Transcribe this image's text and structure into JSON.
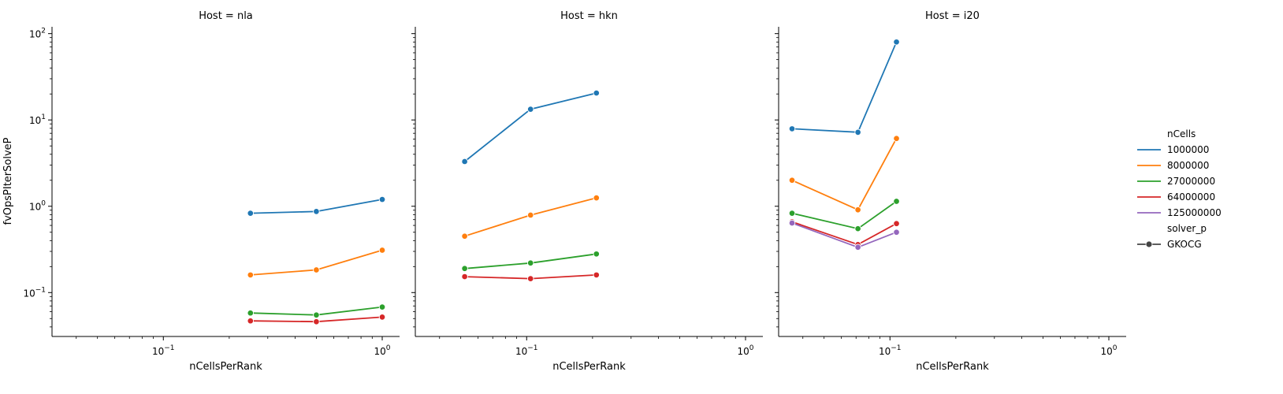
{
  "chart_data": {
    "type": "line",
    "x_scale": "log",
    "y_scale": "log",
    "shared_y": true,
    "ylabel": "fvOpsPIterSolveP",
    "xlabel": "nCellsPerRank",
    "ylim": [
      0.031,
      120
    ],
    "y_ticks": [
      {
        "value": 0.1,
        "base": "10",
        "exp": "−1"
      },
      {
        "value": 1,
        "base": "10",
        "exp": "0"
      },
      {
        "value": 10,
        "base": "10",
        "exp": "1"
      },
      {
        "value": 100,
        "base": "10",
        "exp": "2"
      }
    ],
    "x_ticks": [
      {
        "value": 0.1,
        "base": "10",
        "exp": "−1"
      },
      {
        "value": 1,
        "base": "10",
        "exp": "0"
      }
    ],
    "legend": {
      "placement": "right",
      "hue_title": "nCells",
      "hue_entries": [
        {
          "label": "1000000",
          "color": "#1f77b4"
        },
        {
          "label": "8000000",
          "color": "#ff7f0e"
        },
        {
          "label": "27000000",
          "color": "#2ca02c"
        },
        {
          "label": "64000000",
          "color": "#d62728"
        },
        {
          "label": "125000000",
          "color": "#9467bd"
        }
      ],
      "style_title": "solver_p",
      "style_entries": [
        {
          "label": "GKOCG",
          "color": "#444444"
        }
      ]
    },
    "panels": [
      {
        "title": "Host = nla",
        "xlim": [
          0.031,
          1.2
        ],
        "series": [
          {
            "name": "1000000",
            "color": "#1f77b4",
            "x": [
              0.25,
              0.5,
              1.0
            ],
            "y": [
              0.83,
              0.87,
              1.2
            ]
          },
          {
            "name": "8000000",
            "color": "#ff7f0e",
            "x": [
              0.25,
              0.5,
              1.0
            ],
            "y": [
              0.16,
              0.183,
              0.31
            ]
          },
          {
            "name": "27000000",
            "color": "#2ca02c",
            "x": [
              0.25,
              0.5,
              1.0
            ],
            "y": [
              0.058,
              0.055,
              0.068
            ]
          },
          {
            "name": "64000000",
            "color": "#d62728",
            "x": [
              0.25,
              0.5,
              1.0
            ],
            "y": [
              0.047,
              0.046,
              0.052
            ]
          }
        ]
      },
      {
        "title": "Host = hkn",
        "xlim": [
          0.031,
          1.2
        ],
        "series": [
          {
            "name": "1000000",
            "color": "#1f77b4",
            "x": [
              0.0521,
              0.1042,
              0.2083
            ],
            "y": [
              3.3,
              13.3,
              20.5
            ]
          },
          {
            "name": "8000000",
            "color": "#ff7f0e",
            "x": [
              0.0521,
              0.1042,
              0.2083
            ],
            "y": [
              0.45,
              0.79,
              1.25
            ]
          },
          {
            "name": "27000000",
            "color": "#2ca02c",
            "x": [
              0.0521,
              0.1042,
              0.2083
            ],
            "y": [
              0.19,
              0.22,
              0.28
            ]
          },
          {
            "name": "64000000",
            "color": "#d62728",
            "x": [
              0.0521,
              0.1042,
              0.2083
            ],
            "y": [
              0.153,
              0.145,
              0.16
            ]
          }
        ]
      },
      {
        "title": "Host = i20",
        "xlim": [
          0.031,
          1.2
        ],
        "series": [
          {
            "name": "1000000",
            "color": "#1f77b4",
            "x": [
              0.0357,
              0.0714,
              0.1071
            ],
            "y": [
              7.9,
              7.2,
              80
            ]
          },
          {
            "name": "8000000",
            "color": "#ff7f0e",
            "x": [
              0.0357,
              0.0714,
              0.1071
            ],
            "y": [
              2.0,
              0.91,
              6.1
            ]
          },
          {
            "name": "27000000",
            "color": "#2ca02c",
            "x": [
              0.0357,
              0.0714,
              0.1071
            ],
            "y": [
              0.83,
              0.55,
              1.14
            ]
          },
          {
            "name": "64000000",
            "color": "#d62728",
            "x": [
              0.0357,
              0.0714,
              0.1071
            ],
            "y": [
              0.66,
              0.36,
              0.63
            ]
          },
          {
            "name": "125000000",
            "color": "#9467bd",
            "x": [
              0.0357,
              0.0714,
              0.1071
            ],
            "y": [
              0.64,
              0.335,
              0.5
            ]
          }
        ]
      }
    ]
  }
}
